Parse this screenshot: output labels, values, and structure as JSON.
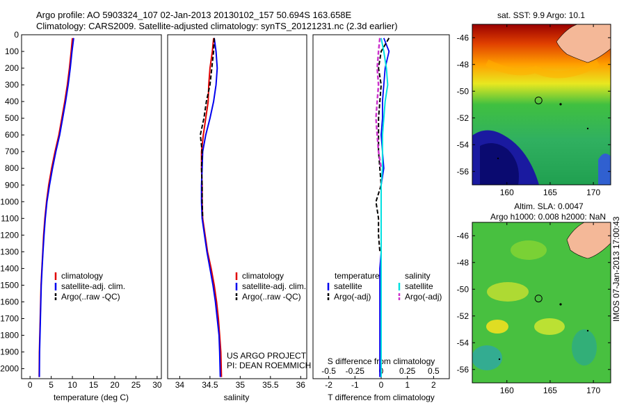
{
  "header": {
    "line1": "Argo profile: AO 5903324_107 02-Jan-2013 20130102_157 50.694S 163.658E",
    "line2": "Climatology: CARS2009. Satellite-adjusted climatology: synTS_20121231.nc (2.3d earlier)"
  },
  "side_label": "IMOS 07-Jan-2013 17:00:43",
  "colors": {
    "climatology": "#e00000",
    "satellite": "#0000ee",
    "argo": "#000000",
    "salinity_satellite": "#00e0e0",
    "salinity_argo": "#cc33cc",
    "land": "#f4b898"
  },
  "chart_data": [
    {
      "type": "line",
      "xlabel": "temperature (deg C)",
      "ylabel": "",
      "xlim": [
        -2,
        31
      ],
      "ylim": [
        2060,
        0
      ],
      "xticks": [
        "0",
        "5",
        "10",
        "15",
        "20",
        "25",
        "30"
      ],
      "yticks": [
        "0",
        "100",
        "200",
        "300",
        "400",
        "500",
        "600",
        "700",
        "800",
        "900",
        "1000",
        "1100",
        "1200",
        "1300",
        "1400",
        "1500",
        "1600",
        "1700",
        "1800",
        "1900",
        "2000"
      ],
      "legend": [
        "climatology",
        "satellite-adj. clim.",
        "Argo(..raw -QC)"
      ],
      "legend_location": "lower-middle",
      "series": [
        {
          "name": "climatology",
          "x": [
            10,
            9.7,
            9.3,
            8.8,
            8.2,
            7.5,
            6.8,
            5.9,
            5.1,
            4.4,
            3.9,
            3.5,
            3.2,
            3.0,
            2.8,
            2.6,
            2.5,
            2.4,
            2.3,
            2.2,
            2.15
          ],
          "y": [
            20,
            100,
            200,
            300,
            400,
            500,
            600,
            700,
            800,
            900,
            1000,
            1100,
            1200,
            1300,
            1400,
            1500,
            1600,
            1700,
            1800,
            1900,
            2050
          ]
        },
        {
          "name": "satellite-adj. clim.",
          "x": [
            10.3,
            9.9,
            9.5,
            9.0,
            8.4,
            7.7,
            7.0,
            6.1,
            5.3,
            4.6,
            4.0,
            3.6,
            3.3,
            3.05,
            2.85,
            2.65,
            2.55,
            2.45,
            2.35,
            2.25,
            2.2
          ],
          "y": [
            20,
            100,
            200,
            300,
            400,
            500,
            600,
            700,
            800,
            900,
            1000,
            1100,
            1200,
            1300,
            1400,
            1500,
            1600,
            1700,
            1800,
            1900,
            2050
          ]
        }
      ]
    },
    {
      "type": "line",
      "xlabel": "salinity",
      "xlim": [
        33.8,
        36.1
      ],
      "ylim": [
        2060,
        0
      ],
      "xticks": [
        "34",
        "34.5",
        "35",
        "35.5",
        "36"
      ],
      "legend": [
        "climatology",
        "satellite-adj. clim.",
        "Argo(..raw -QC)"
      ],
      "legend_location": "lower-right",
      "annotation": [
        "US ARGO PROJECT",
        "PI: DEAN ROEMMICH"
      ],
      "series": [
        {
          "name": "climatology",
          "x": [
            34.56,
            34.54,
            34.5,
            34.48,
            34.47,
            34.43,
            34.39,
            34.36,
            34.36,
            34.37,
            34.37,
            34.38,
            34.42,
            34.46,
            34.52,
            34.57,
            34.61,
            34.64,
            34.66,
            34.68,
            34.69
          ],
          "y": [
            20,
            100,
            200,
            300,
            400,
            500,
            600,
            700,
            800,
            900,
            1000,
            1100,
            1200,
            1300,
            1400,
            1500,
            1600,
            1700,
            1800,
            1900,
            2050
          ]
        },
        {
          "name": "satellite-adj. clim.",
          "x": [
            34.57,
            34.6,
            34.62,
            34.6,
            34.56,
            34.5,
            34.43,
            34.38,
            34.37,
            34.36,
            34.36,
            34.37,
            34.41,
            34.45,
            34.5,
            34.55,
            34.59,
            34.62,
            34.65,
            34.66,
            34.67
          ],
          "y": [
            20,
            100,
            200,
            300,
            400,
            500,
            600,
            700,
            800,
            900,
            1000,
            1100,
            1200,
            1300,
            1400,
            1500,
            1600,
            1700,
            1800,
            1900,
            2050
          ]
        },
        {
          "name": "Argo(..raw -QC)",
          "x": [
            34.57,
            34.56,
            34.53,
            34.5,
            34.44,
            34.4,
            34.34,
            34.37,
            34.36,
            34.37,
            34.37,
            34.38
          ],
          "y": [
            20,
            100,
            200,
            300,
            400,
            500,
            600,
            700,
            800,
            900,
            1000,
            1100
          ]
        }
      ]
    },
    {
      "type": "line",
      "xlabel": "T difference from climatology",
      "top_xlabel": "S difference from climatology",
      "xlim": [
        -2.6,
        2.6
      ],
      "ylim": [
        2060,
        0
      ],
      "xticks": [
        "-2",
        "-1",
        "0",
        "1",
        "2"
      ],
      "top_xticks": [
        "-0.5",
        "-0.25",
        "0",
        "0.25",
        "0.5"
      ],
      "legend_title_left": "temperature",
      "legend_title_right": "salinity",
      "legend": [
        "satellite",
        "Argo(-adj)",
        "satellite",
        "Argo(-adj)"
      ],
      "series": [
        {
          "name": "satellite",
          "x": [
            0.1,
            0.3,
            0.15,
            0.1,
            0.05,
            0.05,
            0.0,
            0.05,
            0.1,
            0.0,
            0.0,
            0.0,
            0.0,
            0.0,
            -0.05,
            -0.05,
            -0.05,
            -0.05,
            -0.05,
            -0.05
          ],
          "y": [
            20,
            100,
            200,
            300,
            400,
            500,
            600,
            700,
            800,
            900,
            1000,
            1100,
            1200,
            1300,
            1400,
            1500,
            1600,
            1700,
            1800,
            2050
          ]
        },
        {
          "name": "Argo(-adj)",
          "x": [
            0.3,
            0.0,
            -0.1,
            0.0,
            -0.05,
            -0.1,
            -0.1,
            -0.1,
            -0.05,
            0.0,
            -0.2,
            -0.1,
            -0.1,
            -0.05
          ],
          "y": [
            20,
            100,
            200,
            300,
            400,
            500,
            600,
            700,
            800,
            900,
            1000,
            1100,
            1200,
            1300
          ]
        },
        {
          "name": "satellite",
          "x": [
            0.0,
            0.1,
            0.2,
            0.25,
            0.15,
            0.1,
            0.05,
            0.05,
            0.05,
            0.0,
            0.0,
            0.0,
            0.0,
            0.0,
            0.0,
            0.0,
            0.0,
            0.0,
            0.0,
            0.0
          ],
          "y": [
            20,
            100,
            200,
            300,
            400,
            500,
            600,
            700,
            800,
            900,
            1000,
            1100,
            1200,
            1300,
            1400,
            1500,
            1600,
            1700,
            1800,
            2050
          ]
        },
        {
          "name": "Argo(-adj)",
          "x": [
            -0.05,
            -0.1,
            -0.15,
            -0.1,
            -0.15,
            -0.2,
            -0.15,
            -0.1,
            0.0
          ],
          "y": [
            20,
            100,
            200,
            300,
            400,
            500,
            600,
            700,
            800
          ]
        }
      ]
    },
    {
      "type": "heatmap",
      "title": "sat. SST: 9.9 Argo: 10.1",
      "xlim": [
        156,
        172
      ],
      "ylim": [
        -57,
        -45
      ],
      "xticks": [
        "160",
        "165",
        "170"
      ],
      "yticks": [
        "-46",
        "-48",
        "-50",
        "-52",
        "-54",
        "-56"
      ],
      "float_marker": {
        "lon": 163.658,
        "lat": -50.694
      }
    },
    {
      "type": "heatmap",
      "title": "Altim. SLA: 0.0047",
      "subtitle": "Argo h1000: 0.008 h2000: NaN",
      "xlim": [
        156,
        172
      ],
      "ylim": [
        -57,
        -45
      ],
      "xticks": [
        "160",
        "165",
        "170"
      ],
      "yticks": [
        "-46",
        "-48",
        "-50",
        "-52",
        "-54",
        "-56"
      ],
      "float_marker": {
        "lon": 163.658,
        "lat": -50.694
      }
    }
  ]
}
